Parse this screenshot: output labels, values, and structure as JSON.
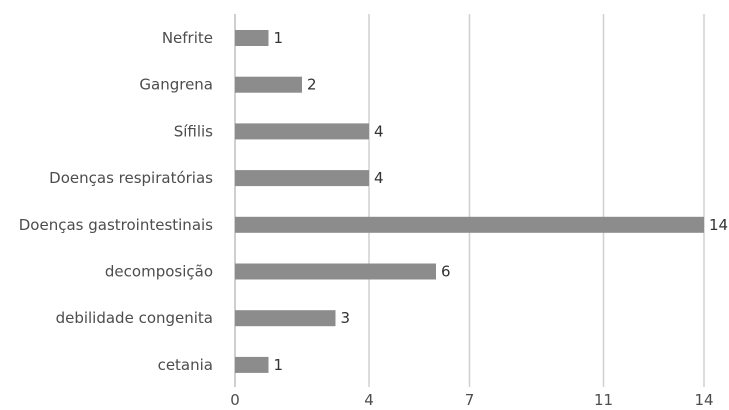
{
  "chart_data": {
    "type": "bar",
    "orientation": "horizontal",
    "categories": [
      "Nefrite",
      "Gangrena",
      "Sífilis",
      "Doenças respiratórias",
      "Doenças gastrointestinais",
      "decomposição",
      "debilidade congenita",
      "cetania"
    ],
    "values": [
      1,
      2,
      4,
      4,
      14,
      6,
      3,
      1
    ],
    "data_labels": [
      "1",
      "2",
      "4",
      "4",
      "14",
      "6",
      "3",
      "1"
    ],
    "x_ticks": [
      0,
      4,
      7,
      11,
      14
    ],
    "x_tick_labels": [
      "0",
      "4",
      "7",
      "11",
      "14"
    ],
    "xlim": [
      0,
      14
    ],
    "title": "",
    "xlabel": "",
    "ylabel": "",
    "grid": "vertical",
    "legend": "none",
    "colors": {
      "bar": "#8c8c8c",
      "grid": "#d0d0d0",
      "axis": "#bfbfbf"
    }
  }
}
